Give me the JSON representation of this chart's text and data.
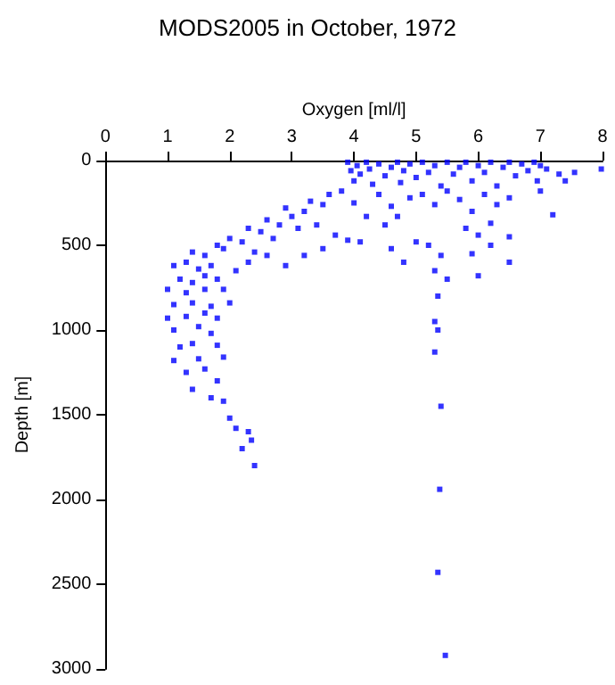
{
  "chart_data": {
    "type": "scatter",
    "title": "MODS2005 in October, 1972",
    "xlabel": "Oxygen [ml/l]",
    "ylabel": "Depth [m]",
    "xlim": [
      0,
      8
    ],
    "xticks": [
      0,
      1,
      2,
      3,
      4,
      5,
      6,
      7,
      8
    ],
    "ylim": [
      3000,
      0
    ],
    "yticks": [
      0,
      500,
      1000,
      1500,
      2000,
      2500,
      3000
    ],
    "grid": false,
    "marker": "square",
    "series": [
      {
        "color": "#0000ff",
        "x": [
          3.9,
          3.95,
          4.0,
          4.05,
          4.1,
          4.2,
          4.25,
          4.3,
          4.4,
          4.5,
          4.6,
          4.7,
          4.75,
          4.8,
          4.9,
          5.0,
          5.1,
          5.2,
          5.3,
          5.4,
          5.5,
          5.6,
          5.7,
          5.8,
          5.9,
          6.0,
          6.1,
          6.2,
          6.3,
          6.4,
          6.5,
          6.6,
          6.7,
          6.8,
          6.9,
          7.0,
          7.1,
          7.3,
          7.4,
          7.55,
          7.98,
          6.95,
          4.0,
          4.2,
          4.4,
          4.5,
          4.6,
          4.7,
          4.9,
          5.1,
          5.3,
          5.5,
          5.7,
          5.9,
          6.1,
          6.3,
          6.5,
          6.2,
          6.5,
          7.0,
          7.2,
          5.8,
          6.0,
          3.8,
          3.6,
          3.5,
          3.3,
          3.2,
          3.0,
          2.9,
          2.8,
          2.6,
          2.5,
          2.3,
          2.2,
          2.0,
          1.9,
          1.8,
          3.4,
          3.1,
          2.7,
          2.4,
          3.7,
          3.5,
          3.9,
          4.1,
          2.9,
          2.6,
          2.3,
          3.2,
          2.1,
          1.6,
          1.4,
          1.1,
          1.3,
          1.5,
          1.7,
          1.2,
          1.4,
          1.6,
          1.8,
          1.0,
          1.3,
          1.6,
          1.9,
          1.1,
          1.4,
          1.7,
          2.0,
          1.0,
          1.3,
          1.6,
          1.8,
          1.1,
          1.5,
          1.7,
          1.2,
          1.4,
          1.8,
          1.1,
          1.5,
          1.9,
          1.3,
          1.6,
          1.8,
          1.4,
          1.7,
          1.9,
          2.0,
          2.1,
          2.3,
          2.35,
          2.2,
          2.4,
          5.2,
          5.4,
          5.3,
          5.5,
          5.35,
          5.3,
          5.35,
          5.3,
          5.4,
          5.38,
          5.35,
          5.47,
          5.9,
          6.2,
          6.5,
          6.0,
          4.6,
          4.8,
          5.0
        ],
        "values": [
          10,
          60,
          120,
          30,
          80,
          10,
          50,
          140,
          20,
          90,
          40,
          10,
          130,
          60,
          20,
          100,
          10,
          70,
          30,
          150,
          10,
          80,
          40,
          10,
          120,
          30,
          70,
          10,
          150,
          40,
          10,
          90,
          20,
          60,
          10,
          30,
          50,
          80,
          120,
          70,
          50,
          120,
          250,
          330,
          200,
          380,
          270,
          330,
          220,
          200,
          260,
          180,
          230,
          300,
          200,
          260,
          220,
          370,
          450,
          180,
          320,
          400,
          440,
          180,
          200,
          260,
          240,
          300,
          330,
          280,
          380,
          350,
          420,
          400,
          480,
          460,
          520,
          500,
          380,
          400,
          460,
          540,
          440,
          520,
          470,
          480,
          620,
          560,
          600,
          560,
          650,
          560,
          540,
          620,
          600,
          640,
          620,
          700,
          720,
          680,
          700,
          760,
          780,
          760,
          760,
          850,
          840,
          860,
          840,
          930,
          920,
          900,
          930,
          1000,
          980,
          1020,
          1100,
          1080,
          1090,
          1180,
          1170,
          1160,
          1250,
          1230,
          1300,
          1350,
          1400,
          1420,
          1520,
          1580,
          1600,
          1650,
          1700,
          1800,
          500,
          560,
          650,
          700,
          800,
          950,
          1000,
          1130,
          1450,
          1940,
          2430,
          2920,
          550,
          500,
          600,
          680,
          520,
          600,
          480
        ]
      }
    ]
  }
}
